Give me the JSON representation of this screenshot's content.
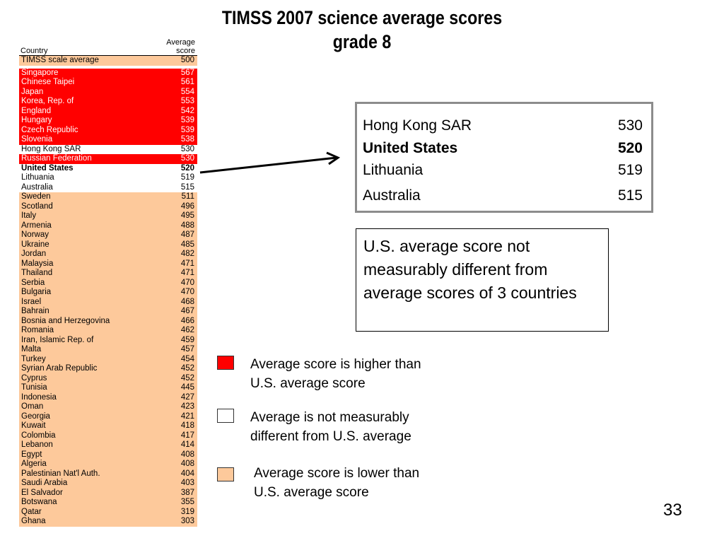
{
  "title": {
    "line1": "TIMSS 2007 science average scores",
    "line2": "grade 8"
  },
  "table": {
    "header_country": "Country",
    "header_score_line1": "Average",
    "header_score_line2": "score",
    "rows": [
      {
        "name": "TIMSS scale average",
        "score": "500",
        "group": "peach"
      },
      {
        "name": "Singapore",
        "score": "567",
        "group": "red"
      },
      {
        "name": "Chinese Taipei",
        "score": "561",
        "group": "red"
      },
      {
        "name": "Japan",
        "score": "554",
        "group": "red"
      },
      {
        "name": "Korea, Rep. of",
        "score": "553",
        "group": "red"
      },
      {
        "name": "England",
        "score": "542",
        "group": "red"
      },
      {
        "name": "Hungary",
        "score": "539",
        "group": "red"
      },
      {
        "name": "Czech Republic",
        "score": "539",
        "group": "red"
      },
      {
        "name": "Slovenia",
        "score": "538",
        "group": "red"
      },
      {
        "name": "Hong Kong SAR",
        "score": "530",
        "group": "white"
      },
      {
        "name": "Russian Federation",
        "score": "530",
        "group": "red"
      },
      {
        "name": "United States",
        "score": "520",
        "group": "white",
        "bold": true
      },
      {
        "name": "Lithuania",
        "score": "519",
        "group": "white"
      },
      {
        "name": "Australia",
        "score": "515",
        "group": "white"
      },
      {
        "name": "Sweden",
        "score": "511",
        "group": "peach"
      },
      {
        "name": "Scotland",
        "score": "496",
        "group": "peach"
      },
      {
        "name": "Italy",
        "score": "495",
        "group": "peach"
      },
      {
        "name": "Armenia",
        "score": "488",
        "group": "peach"
      },
      {
        "name": "Norway",
        "score": "487",
        "group": "peach"
      },
      {
        "name": "Ukraine",
        "score": "485",
        "group": "peach"
      },
      {
        "name": "Jordan",
        "score": "482",
        "group": "peach"
      },
      {
        "name": "Malaysia",
        "score": "471",
        "group": "peach"
      },
      {
        "name": "Thailand",
        "score": "471",
        "group": "peach"
      },
      {
        "name": "Serbia",
        "score": "470",
        "group": "peach"
      },
      {
        "name": "Bulgaria",
        "score": "470",
        "group": "peach"
      },
      {
        "name": "Israel",
        "score": "468",
        "group": "peach"
      },
      {
        "name": "Bahrain",
        "score": "467",
        "group": "peach"
      },
      {
        "name": "Bosnia and Herzegovina",
        "score": "466",
        "group": "peach"
      },
      {
        "name": "Romania",
        "score": "462",
        "group": "peach"
      },
      {
        "name": "Iran, Islamic Rep. of",
        "score": "459",
        "group": "peach"
      },
      {
        "name": "Malta",
        "score": "457",
        "group": "peach"
      },
      {
        "name": "Turkey",
        "score": "454",
        "group": "peach"
      },
      {
        "name": "Syrian Arab Republic",
        "score": "452",
        "group": "peach"
      },
      {
        "name": "Cyprus",
        "score": "452",
        "group": "peach"
      },
      {
        "name": "Tunisia",
        "score": "445",
        "group": "peach"
      },
      {
        "name": "Indonesia",
        "score": "427",
        "group": "peach"
      },
      {
        "name": "Oman",
        "score": "423",
        "group": "peach"
      },
      {
        "name": "Georgia",
        "score": "421",
        "group": "peach"
      },
      {
        "name": "Kuwait",
        "score": "418",
        "group": "peach"
      },
      {
        "name": "Colombia",
        "score": "417",
        "group": "peach"
      },
      {
        "name": "Lebanon",
        "score": "414",
        "group": "peach"
      },
      {
        "name": "Egypt",
        "score": "408",
        "group": "peach"
      },
      {
        "name": "Algeria",
        "score": "408",
        "group": "peach"
      },
      {
        "name": "Palestinian Nat'l Auth.",
        "score": "404",
        "group": "peach"
      },
      {
        "name": "Saudi Arabia",
        "score": "403",
        "group": "peach"
      },
      {
        "name": "El Salvador",
        "score": "387",
        "group": "peach"
      },
      {
        "name": "Botswana",
        "score": "355",
        "group": "peach"
      },
      {
        "name": "Qatar",
        "score": "319",
        "group": "peach"
      },
      {
        "name": "Ghana",
        "score": "303",
        "group": "peach"
      }
    ]
  },
  "zoom": {
    "rows": [
      {
        "name": "Hong Kong SAR",
        "score": "530"
      },
      {
        "name": "United States",
        "score": "520",
        "bold": true
      },
      {
        "name": "Lithuania",
        "score": "519"
      },
      {
        "name": "Australia",
        "score": "515"
      }
    ]
  },
  "note": "U.S. average score not measurably different from average scores of 3 countries",
  "legend": [
    {
      "line1": "Average score is higher than",
      "line2": "U.S. average score",
      "color": "#ff0000"
    },
    {
      "line1": "Average is not measurably",
      "line2": "different from U.S. average",
      "color": "#ffffff"
    },
    {
      "line1": "Average score is lower than",
      "line2": "U.S. average score",
      "color": "#fdc99b"
    }
  ],
  "page_number": "33"
}
